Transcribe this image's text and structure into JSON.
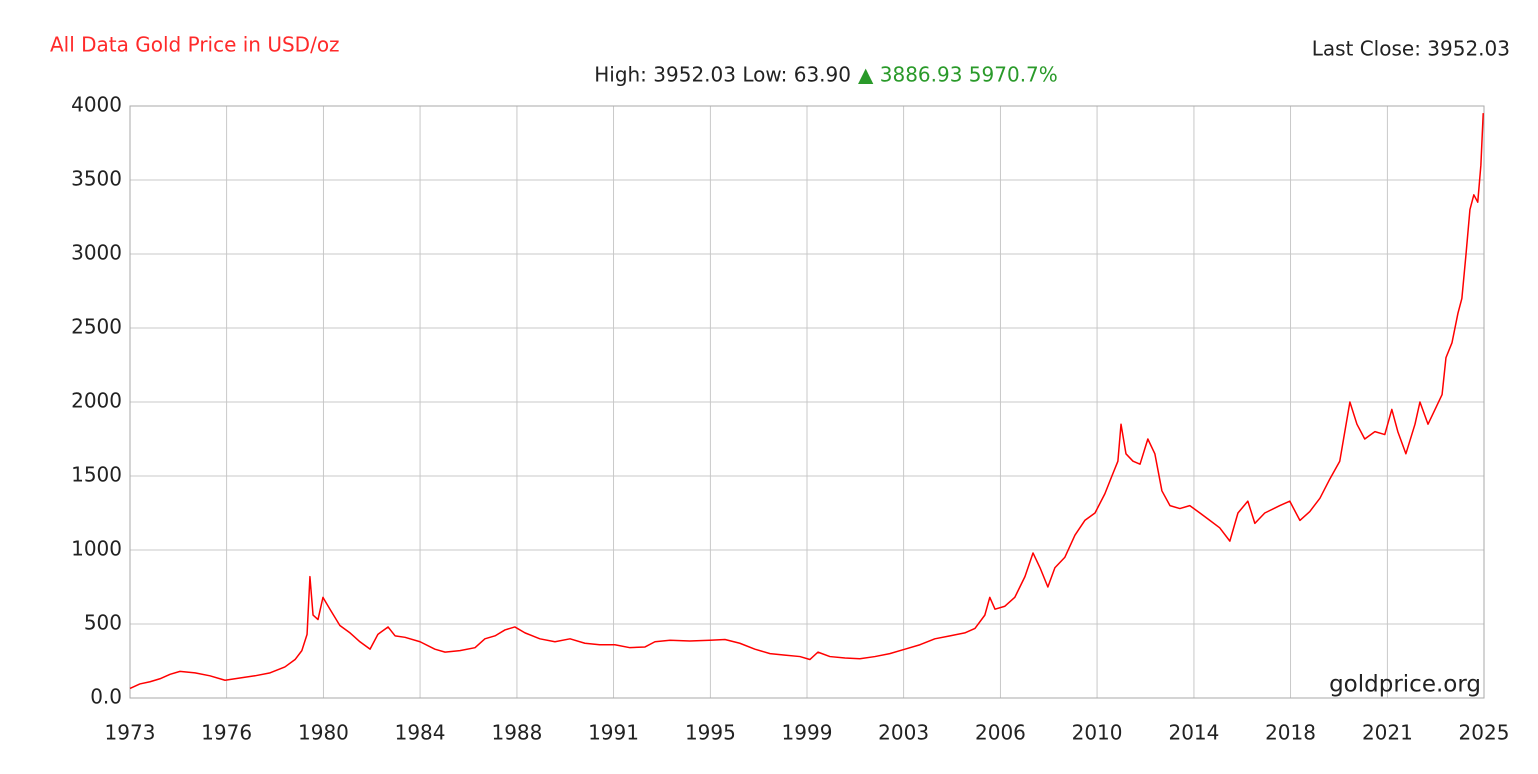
{
  "chart_data": {
    "type": "line",
    "title": "All Data Gold Price in USD/oz",
    "title_color": "#ff2a2a",
    "summary": "High: 3952.03 Low: 63.90",
    "change": "▲ 3886.93 5970.7%",
    "change_color": "#2a9a2a",
    "last_close": "Last Close: 3952.03",
    "watermark": "goldprice.org",
    "grid": true,
    "xlim": [
      1973,
      2025
    ],
    "xticks": [
      1973,
      {
        "value": 1976.71,
        "label": "1976"
      },
      {
        "value": 1980.43,
        "label": "1980"
      },
      {
        "value": 1984.14,
        "label": "1984"
      },
      {
        "value": 1987.86,
        "label": "1988"
      },
      {
        "value": 1991.57,
        "label": "1991"
      },
      {
        "value": 1995.29,
        "label": "1995"
      },
      1999,
      {
        "value": 2002.71,
        "label": "2003"
      },
      {
        "value": 2006.43,
        "label": "2006"
      },
      {
        "value": 2010.14,
        "label": "2010"
      },
      {
        "value": 2013.86,
        "label": "2014"
      },
      {
        "value": 2017.57,
        "label": "2018"
      },
      {
        "value": 2021.29,
        "label": "2021"
      },
      2025
    ],
    "ylim": [
      0,
      4000
    ],
    "yticks": [
      {
        "value": 0,
        "label": "0.0"
      },
      500,
      1000,
      1500,
      2000,
      2500,
      3000,
      3500,
      4000
    ],
    "x": [
      1973.0,
      1973.38,
      1973.77,
      1974.15,
      1974.54,
      1974.92,
      1975.5,
      1976.07,
      1976.65,
      1977.22,
      1977.8,
      1978.38,
      1978.95,
      1979.34,
      1979.6,
      1979.8,
      1979.91,
      1980.03,
      1980.22,
      1980.41,
      1980.68,
      1981.06,
      1981.45,
      1981.83,
      1982.22,
      1982.52,
      1982.91,
      1983.18,
      1983.56,
      1984.14,
      1984.71,
      1985.1,
      1985.67,
      1986.25,
      1986.63,
      1987.02,
      1987.4,
      1987.78,
      1988.17,
      1988.74,
      1989.32,
      1989.9,
      1990.47,
      1991.04,
      1991.62,
      1992.2,
      1992.78,
      1993.16,
      1993.74,
      1994.5,
      1995.27,
      1995.85,
      1996.42,
      1997.0,
      1997.58,
      1998.15,
      1998.73,
      1999.11,
      1999.42,
      1999.88,
      2000.46,
      2001.03,
      2001.61,
      2002.18,
      2002.76,
      2003.34,
      2003.91,
      2004.49,
      2005.06,
      2005.45,
      2005.83,
      2006.02,
      2006.22,
      2006.6,
      2006.98,
      2007.37,
      2007.68,
      2007.95,
      2008.25,
      2008.52,
      2008.9,
      2009.29,
      2009.67,
      2010.06,
      2010.44,
      2010.71,
      2010.94,
      2011.06,
      2011.25,
      2011.52,
      2011.79,
      2012.09,
      2012.36,
      2012.63,
      2012.94,
      2013.32,
      2013.7,
      2014.09,
      2014.47,
      2014.85,
      2015.24,
      2015.55,
      2015.93,
      2016.2,
      2016.58,
      2017.16,
      2017.54,
      2017.93,
      2018.31,
      2018.7,
      2019.08,
      2019.46,
      2019.85,
      2020.12,
      2020.42,
      2020.81,
      2021.19,
      2021.46,
      2021.69,
      2022.0,
      2022.35,
      2022.54,
      2022.85,
      2023.12,
      2023.39,
      2023.54,
      2023.77,
      2024.0,
      2024.15,
      2024.31,
      2024.46,
      2024.61,
      2024.76,
      2024.88,
      2024.97
    ],
    "series": [
      {
        "color": "#ff0000",
        "values": [
          65,
          95,
          110,
          130,
          160,
          180,
          170,
          150,
          120,
          135,
          150,
          170,
          210,
          260,
          320,
          430,
          820,
          560,
          530,
          680,
          600,
          490,
          440,
          380,
          330,
          430,
          480,
          420,
          410,
          380,
          330,
          310,
          320,
          340,
          400,
          420,
          460,
          480,
          440,
          400,
          380,
          400,
          370,
          360,
          360,
          340,
          345,
          380,
          390,
          385,
          390,
          395,
          370,
          330,
          300,
          290,
          280,
          260,
          310,
          280,
          270,
          265,
          280,
          300,
          330,
          360,
          400,
          420,
          440,
          470,
          560,
          680,
          600,
          620,
          680,
          820,
          980,
          880,
          750,
          880,
          950,
          1100,
          1200,
          1250,
          1380,
          1500,
          1600,
          1850,
          1650,
          1600,
          1580,
          1750,
          1650,
          1400,
          1300,
          1280,
          1300,
          1250,
          1200,
          1150,
          1060,
          1250,
          1330,
          1180,
          1250,
          1300,
          1330,
          1200,
          1260,
          1350,
          1480,
          1600,
          2000,
          1850,
          1750,
          1800,
          1780,
          1950,
          1800,
          1650,
          1850,
          2000,
          1850,
          1950,
          2050,
          2300,
          2400,
          2600,
          2700,
          3000,
          3300,
          3400,
          3350,
          3600,
          3952.03
        ]
      }
    ]
  }
}
